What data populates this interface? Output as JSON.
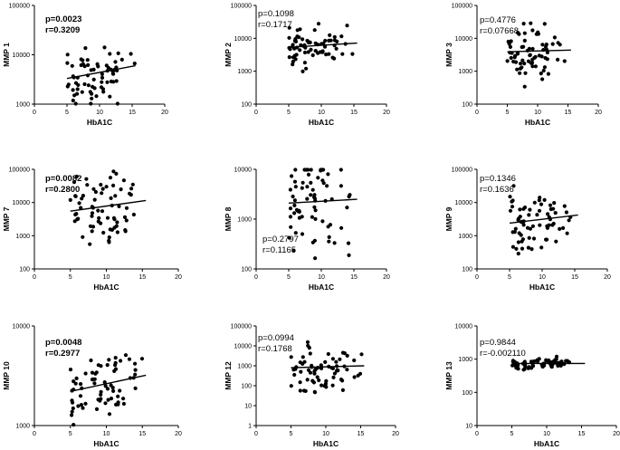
{
  "chart_data": [
    {
      "type": "scatter",
      "ylabel": "MMP 1",
      "xlabel": "HbA1C",
      "p": "p=0.0023",
      "r": "r=0.3209",
      "stats_bold": true,
      "ylog": true,
      "ylim": [
        1000,
        100000
      ],
      "yticks": [
        "1000",
        "10000",
        "100000"
      ],
      "xlim": [
        0,
        20
      ],
      "xticks": [
        "0",
        "5",
        "10",
        "15",
        "20"
      ],
      "fit": [
        [
          5,
          3300
        ],
        [
          15.5,
          6000
        ]
      ],
      "seed": 11,
      "cloud_center": 3.62,
      "cloud_spread": 0.2
    },
    {
      "type": "scatter",
      "ylabel": "MMP 2",
      "xlabel": "HbA1C",
      "p": "p=0.1098",
      "r": "r=0.1717",
      "stats_bold": false,
      "ylog": true,
      "ylim": [
        100,
        100000
      ],
      "yticks": [
        "100",
        "1000",
        "10000",
        "100000"
      ],
      "xlim": [
        0,
        20
      ],
      "xticks": [
        "0",
        "5",
        "10",
        "15",
        "20"
      ],
      "fit": [
        [
          5,
          5300
        ],
        [
          15.5,
          7200
        ]
      ],
      "seed": 23,
      "cloud_center": 3.72,
      "cloud_spread": 0.22
    },
    {
      "type": "scatter",
      "ylabel": "MMP 3",
      "xlabel": "HbA1C",
      "p": "p=0.4776",
      "r": "r=0.07668",
      "stats_bold": false,
      "ylog": true,
      "ylim": [
        100,
        100000
      ],
      "yticks": [
        "100",
        "1000",
        "10000",
        "100000"
      ],
      "xlim": [
        0,
        20
      ],
      "xticks": [
        "0",
        "5",
        "10",
        "15",
        "20"
      ],
      "fit": [
        [
          5,
          3900
        ],
        [
          15.5,
          4400
        ]
      ],
      "seed": 37,
      "cloud_center": 3.58,
      "cloud_spread": 0.3
    },
    {
      "type": "scatter",
      "ylabel": "MMP 7",
      "xlabel": "HbA1C",
      "p": "p=0.0082",
      "r": "r=0.2800",
      "stats_bold": true,
      "ylog": true,
      "ylim": [
        100,
        100000
      ],
      "yticks": [
        "100",
        "1000",
        "10000",
        "100000"
      ],
      "xlim": [
        0,
        20
      ],
      "xticks": [
        "0",
        "5",
        "10",
        "15",
        "20"
      ],
      "fit": [
        [
          5,
          5500
        ],
        [
          15.5,
          11500
        ]
      ],
      "seed": 41,
      "cloud_center": 3.8,
      "cloud_spread": 0.45
    },
    {
      "type": "scatter",
      "ylabel": "MMP 8",
      "xlabel": "HbA1C",
      "p": "p=0.2797",
      "r": "r=0.1165",
      "stats_bold": false,
      "ylog": true,
      "ylim": [
        100,
        10000
      ],
      "yticks": [
        "100",
        "1000",
        "10000"
      ],
      "xlim": [
        0,
        20
      ],
      "xticks": [
        "0",
        "5",
        "10",
        "15",
        "20"
      ],
      "fit": [
        [
          5,
          2100
        ],
        [
          15.5,
          2500
        ]
      ],
      "seed": 53,
      "cloud_center": 3.35,
      "cloud_spread": 0.35
    },
    {
      "type": "scatter",
      "ylabel": "MMP 9",
      "xlabel": "HbA1C",
      "p": "p=0.1346",
      "r": "r=0.1636",
      "stats_bold": false,
      "ylog": true,
      "ylim": [
        100,
        100000
      ],
      "yticks": [
        "100",
        "1000",
        "10000",
        "100000"
      ],
      "xlim": [
        0,
        20
      ],
      "xticks": [
        "0",
        "5",
        "10",
        "15",
        "20"
      ],
      "fit": [
        [
          5,
          2400
        ],
        [
          15.5,
          4200
        ]
      ],
      "seed": 67,
      "cloud_center": 3.45,
      "cloud_spread": 0.32
    },
    {
      "type": "scatter",
      "ylabel": "MMP 10",
      "xlabel": "HbA1C",
      "p": "p=0.0048",
      "r": "r=0.2977",
      "stats_bold": true,
      "ylog": true,
      "ylim": [
        1000,
        10000
      ],
      "yticks": [
        "1000",
        "10000"
      ],
      "xlim": [
        0,
        20
      ],
      "xticks": [
        "0",
        "5",
        "10",
        "15",
        "20"
      ],
      "fit": [
        [
          5,
          2200
        ],
        [
          15.5,
          3200
        ]
      ],
      "seed": 79,
      "cloud_center": 3.42,
      "cloud_spread": 0.12
    },
    {
      "type": "scatter",
      "ylabel": "MMP 12",
      "xlabel": "HbA1C",
      "p": "p=0.0994",
      "r": "r=0.1768",
      "stats_bold": false,
      "ylog": true,
      "ylim": [
        1,
        100000
      ],
      "yticks": [
        "1",
        "10",
        "100",
        "1000",
        "10000",
        "100000"
      ],
      "xlim": [
        0,
        20
      ],
      "xticks": [
        "0",
        "5",
        "10",
        "15",
        "20"
      ],
      "fit": [
        [
          5,
          800
        ],
        [
          15.5,
          1000
        ]
      ],
      "seed": 83,
      "cloud_center": 2.8,
      "cloud_spread": 0.4
    },
    {
      "type": "scatter",
      "ylabel": "MMP 13",
      "xlabel": "HbA1C",
      "p": "p=0.9844",
      "r": "r=-0.002110",
      "stats_bold": false,
      "ylog": true,
      "ylim": [
        10,
        10000
      ],
      "yticks": [
        "10",
        "100",
        "1000",
        "10000"
      ],
      "xlim": [
        0,
        20
      ],
      "xticks": [
        "0",
        "5",
        "10",
        "15",
        "20"
      ],
      "fit": [
        [
          5,
          740
        ],
        [
          15.5,
          740
        ]
      ],
      "seed": 97,
      "cloud_center": 2.87,
      "cloud_spread": 0.05
    }
  ]
}
